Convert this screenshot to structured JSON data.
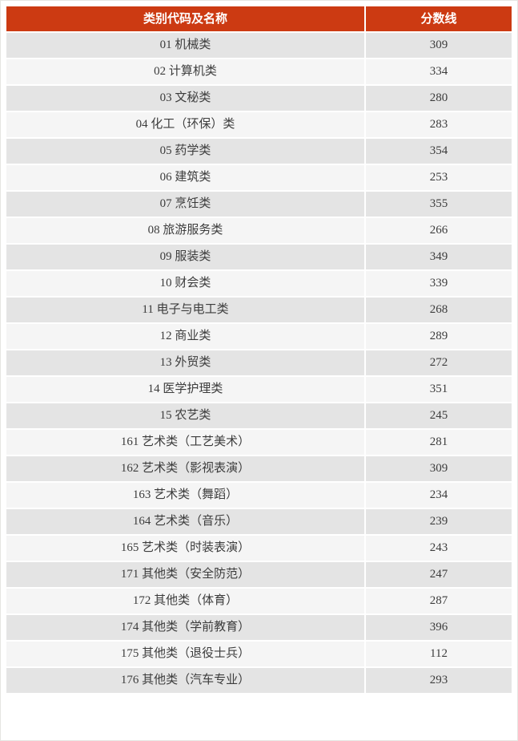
{
  "table": {
    "columns": [
      "类别代码及名称",
      "分数线"
    ],
    "rows": [
      {
        "category": "01 机械类",
        "score": 309
      },
      {
        "category": "02 计算机类",
        "score": 334
      },
      {
        "category": "03 文秘类",
        "score": 280
      },
      {
        "category": "04 化工（环保）类",
        "score": 283
      },
      {
        "category": "05 药学类",
        "score": 354
      },
      {
        "category": "06 建筑类",
        "score": 253
      },
      {
        "category": "07 烹饪类",
        "score": 355
      },
      {
        "category": "08 旅游服务类",
        "score": 266
      },
      {
        "category": "09 服装类",
        "score": 349
      },
      {
        "category": "10 财会类",
        "score": 339
      },
      {
        "category": "11 电子与电工类",
        "score": 268
      },
      {
        "category": "12 商业类",
        "score": 289
      },
      {
        "category": "13 外贸类",
        "score": 272
      },
      {
        "category": "14 医学护理类",
        "score": 351
      },
      {
        "category": "15 农艺类",
        "score": 245
      },
      {
        "category": "161 艺术类（工艺美术）",
        "score": 281
      },
      {
        "category": "162 艺术类（影视表演）",
        "score": 309
      },
      {
        "category": "163 艺术类（舞蹈）",
        "score": 234
      },
      {
        "category": "164 艺术类（音乐）",
        "score": 239
      },
      {
        "category": "165 艺术类（时装表演）",
        "score": 243
      },
      {
        "category": "171 其他类（安全防范）",
        "score": 247
      },
      {
        "category": "172 其他类（体育）",
        "score": 287
      },
      {
        "category": "174 其他类（学前教育）",
        "score": 396
      },
      {
        "category": "175 其他类（退役士兵）",
        "score": 112
      },
      {
        "category": "176 其他类（汽车专业）",
        "score": 293
      }
    ]
  },
  "theme": {
    "header_bg": "#CC3A12",
    "header_text": "#FFFFFF",
    "row_odd_bg": "#E4E4E4",
    "row_even_bg": "#F5F5F5",
    "cell_text": "#3C3C3C"
  }
}
